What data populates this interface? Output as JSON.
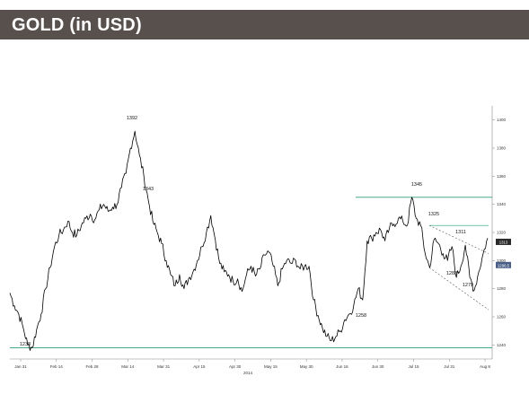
{
  "header": {
    "title": "GOLD (in USD)"
  },
  "chart_data": {
    "type": "line",
    "title": "GOLD (in USD)",
    "xlabel": "2014",
    "ylabel": "",
    "grid": false,
    "ylim": [
      1230,
      1410
    ],
    "x_ticks": [
      "Jan 31",
      "Feb 14",
      "Feb 28",
      "Mar 14",
      "Mar 31",
      "Apr 15",
      "Apr 30",
      "May 15",
      "May 30",
      "Jun 16",
      "Jun 30",
      "Jul 15",
      "Jul 31",
      "Aug 8"
    ],
    "y_ticks": [
      1240,
      1260,
      1280,
      1300,
      1320,
      1340,
      1360,
      1380,
      1400
    ],
    "series": [
      {
        "values": [
          1277,
          1268,
          1262,
          1252,
          1240,
          1238,
          1251,
          1262,
          1280,
          1295,
          1310,
          1318,
          1322,
          1328,
          1320,
          1318,
          1325,
          1330,
          1333,
          1329,
          1336,
          1340,
          1335,
          1338,
          1340,
          1352,
          1362,
          1380,
          1392,
          1375,
          1360,
          1343,
          1328,
          1320,
          1312,
          1300,
          1290,
          1282,
          1290,
          1280,
          1287,
          1292,
          1300,
          1310,
          1320,
          1332,
          1315,
          1298,
          1292,
          1290,
          1285,
          1287,
          1278,
          1290,
          1296,
          1289,
          1294,
          1304,
          1306,
          1296,
          1282,
          1294,
          1300,
          1298,
          1300,
          1294,
          1296,
          1296,
          1272,
          1261,
          1252,
          1246,
          1243,
          1246,
          1250,
          1258,
          1262,
          1268,
          1280,
          1272,
          1314,
          1316,
          1320,
          1322,
          1314,
          1323,
          1326,
          1330,
          1328,
          1325,
          1345,
          1330,
          1325,
          1305,
          1295,
          1315,
          1312,
          1305,
          1300,
          1310,
          1288,
          1296,
          1311,
          1288,
          1279,
          1292,
          1305,
          1316
        ]
      }
    ],
    "annotations": [
      "1392",
      "1343",
      "1345",
      "1325",
      "1311",
      "1288",
      "1279",
      "1258",
      "1238"
    ],
    "reference_lines": [
      1345,
      1238
    ],
    "trend_lines": [
      {
        "from": {
          "x": "Jul 25",
          "y": 1325
        },
        "to": {
          "x": "Aug 8",
          "y": 1305
        }
      },
      {
        "from": {
          "x": "Jul 25",
          "y": 1295
        },
        "to": {
          "x": "Aug 8",
          "y": 1265
        }
      }
    ],
    "price_tags": [
      "1313",
      "1296.5"
    ],
    "colors": {
      "line": "#000000",
      "reference": "#2e9b79",
      "trend": "#555555",
      "header": "#58504c"
    }
  }
}
